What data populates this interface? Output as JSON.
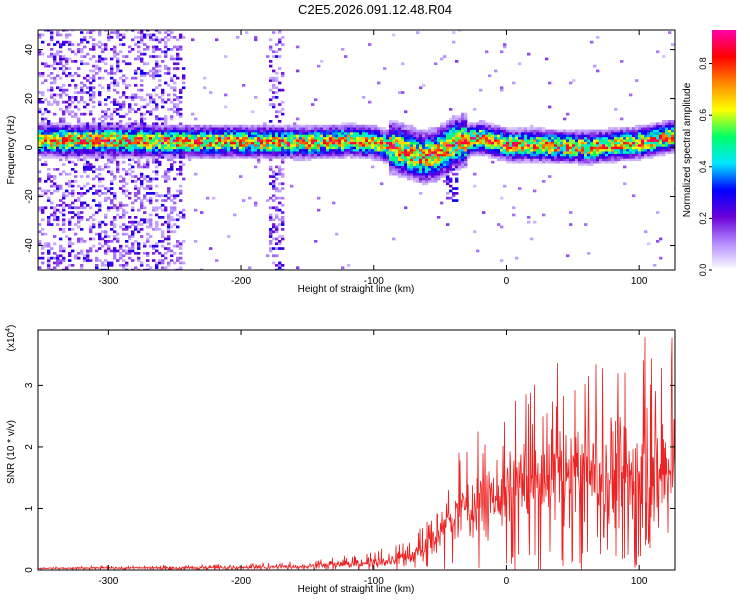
{
  "chart_data": {
    "title": "C2E5.2026.091.12.48.R04",
    "spectrogram": {
      "type": "heatmap",
      "xlabel": "Height of straight line (km)",
      "ylabel": "Frequency (Hz)",
      "xlim": [
        -353,
        127
      ],
      "ylim": [
        -50,
        48
      ],
      "xticks": [
        -300,
        -200,
        -100,
        0,
        100
      ],
      "yticks": [
        -40,
        -20,
        0,
        20,
        40
      ],
      "colorbar": {
        "label": "Normalized spectral amplitude",
        "range": [
          0,
          0.93
        ],
        "ticks": [
          0.0,
          0.2,
          0.4,
          0.6,
          0.8
        ],
        "tick_labels": [
          "0.0",
          "0.2",
          "0.4",
          "0.6",
          "0.8"
        ],
        "colors": [
          "#ffffff",
          "#b48cff",
          "#6a00d8",
          "#0000ff",
          "#00e8ff",
          "#00ff66",
          "#ffff00",
          "#ff8800",
          "#ff0000",
          "#ff00aa"
        ]
      },
      "ridge_center_hz": [
        [
          -353,
          3
        ],
        [
          -300,
          3
        ],
        [
          -250,
          2.5
        ],
        [
          -200,
          2.5
        ],
        [
          -150,
          2
        ],
        [
          -120,
          3
        ],
        [
          -100,
          2
        ],
        [
          -80,
          -1
        ],
        [
          -65,
          -4
        ],
        [
          -55,
          -3
        ],
        [
          -40,
          2
        ],
        [
          -20,
          4
        ],
        [
          0,
          1
        ],
        [
          20,
          1
        ],
        [
          60,
          0
        ],
        [
          100,
          2
        ],
        [
          127,
          5
        ]
      ],
      "noise_bands_km": [
        [
          -353,
          -243
        ],
        [
          -180,
          -168
        ]
      ]
    },
    "snr": {
      "type": "line",
      "xlabel": "Height of straight line (km)",
      "ylabel": "SNR (10 * v/v)",
      "multiplier_label": "(x10",
      "multiplier_exp": "4",
      "xlim": [
        -353,
        127
      ],
      "ylim": [
        0,
        3.9
      ],
      "xticks": [
        -300,
        -200,
        -100,
        0,
        100
      ],
      "yticks": [
        0,
        1,
        2,
        3
      ],
      "color": "#ee2222",
      "envelope_mean": [
        [
          -353,
          0.03
        ],
        [
          -200,
          0.04
        ],
        [
          -150,
          0.06
        ],
        [
          -100,
          0.12
        ],
        [
          -75,
          0.2
        ],
        [
          -60,
          0.35
        ],
        [
          -50,
          0.6
        ],
        [
          -40,
          0.9
        ],
        [
          -20,
          1.1
        ],
        [
          0,
          1.3
        ],
        [
          20,
          1.4
        ],
        [
          40,
          1.6
        ],
        [
          60,
          1.6
        ],
        [
          80,
          1.5
        ],
        [
          100,
          1.5
        ],
        [
          127,
          1.6
        ]
      ],
      "envelope_peak": [
        [
          -353,
          0.05
        ],
        [
          -200,
          0.1
        ],
        [
          -150,
          0.15
        ],
        [
          -100,
          0.3
        ],
        [
          -75,
          0.5
        ],
        [
          -60,
          0.8
        ],
        [
          -50,
          1.2
        ],
        [
          -40,
          1.8
        ],
        [
          -20,
          2.3
        ],
        [
          0,
          2.8
        ],
        [
          20,
          3.0
        ],
        [
          40,
          3.4
        ],
        [
          60,
          3.4
        ],
        [
          80,
          3.8
        ],
        [
          100,
          3.8
        ],
        [
          127,
          3.8
        ]
      ]
    }
  }
}
